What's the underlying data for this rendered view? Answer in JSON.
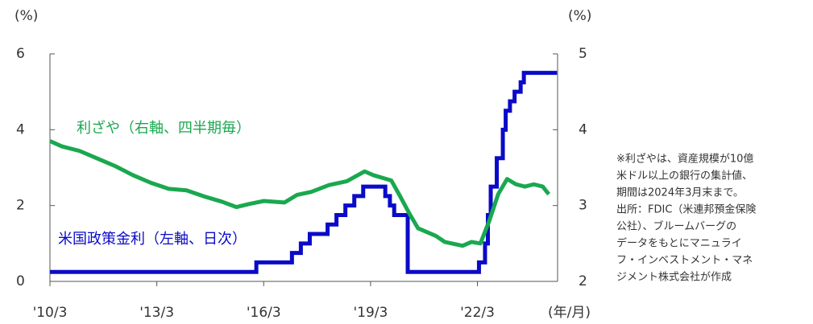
{
  "chart_data": {
    "type": "line",
    "y_unit_label": "(%)",
    "y2_unit_label": "(%)",
    "x_unit_label": "(年/月)",
    "xlim": [
      2010.1667,
      2024.4167
    ],
    "xticks": [
      {
        "value": 2010.1667,
        "label": "'10/3"
      },
      {
        "value": 2013.1667,
        "label": "'13/3"
      },
      {
        "value": 2016.1667,
        "label": "'16/3"
      },
      {
        "value": 2019.1667,
        "label": "'19/3"
      },
      {
        "value": 2022.1667,
        "label": "'22/3"
      }
    ],
    "ylim": [
      0,
      6
    ],
    "yticks": [
      0,
      2,
      4,
      6
    ],
    "y2lim": [
      2,
      5
    ],
    "y2ticks": [
      2,
      3,
      4,
      5
    ],
    "series": [
      {
        "name": "米国政策金利（左軸、日次）",
        "color": "#0a0ac8",
        "step": true,
        "x": [
          2010.17,
          2015.96,
          2016.96,
          2017.21,
          2017.46,
          2017.96,
          2018.21,
          2018.46,
          2018.71,
          2018.96,
          2019.58,
          2019.71,
          2019.83,
          2020.21,
          2022.21,
          2022.38,
          2022.46,
          2022.54,
          2022.71,
          2022.88,
          2022.96,
          2023.08,
          2023.21,
          2023.38,
          2023.47,
          2024.4
        ],
        "values": [
          0.25,
          0.5,
          0.75,
          1.0,
          1.25,
          1.5,
          1.75,
          2.0,
          2.25,
          2.5,
          2.25,
          2.0,
          1.75,
          0.25,
          0.5,
          1.0,
          1.75,
          2.5,
          3.25,
          4.0,
          4.5,
          4.75,
          5.0,
          5.25,
          5.5,
          5.5
        ]
      },
      {
        "name": "利ざや（右軸、四半期毎）",
        "color": "#1aa84f",
        "axis": "y2",
        "x": [
          2010.17,
          2010.5,
          2011.0,
          2011.5,
          2012.0,
          2012.5,
          2013.0,
          2013.5,
          2014.0,
          2014.5,
          2015.0,
          2015.4,
          2015.75,
          2016.17,
          2016.75,
          2017.1,
          2017.5,
          2018.0,
          2018.5,
          2019.0,
          2019.25,
          2019.75,
          2020.0,
          2020.25,
          2020.5,
          2021.0,
          2021.25,
          2021.75,
          2022.0,
          2022.25,
          2022.5,
          2022.75,
          2023.0,
          2023.25,
          2023.5,
          2023.75,
          2024.0,
          2024.17
        ],
        "values": [
          3.85,
          3.78,
          3.72,
          3.62,
          3.52,
          3.4,
          3.3,
          3.22,
          3.2,
          3.12,
          3.05,
          2.98,
          3.02,
          3.06,
          3.04,
          3.14,
          3.18,
          3.27,
          3.32,
          3.45,
          3.4,
          3.33,
          3.12,
          2.9,
          2.7,
          2.6,
          2.52,
          2.47,
          2.52,
          2.5,
          2.8,
          3.15,
          3.35,
          3.28,
          3.25,
          3.28,
          3.25,
          3.15
        ]
      }
    ],
    "note": [
      "※利ざやは、資産規模が10億",
      "米ドル以上の銀行の集計値、",
      "期間は2024年3月末まで。",
      "出所：FDIC（米連邦預金保険",
      "公社）、ブルームバーグの",
      "データをもとにマニュライ",
      "フ・インベストメント・マネ",
      "ジメント株式会社が作成"
    ]
  }
}
